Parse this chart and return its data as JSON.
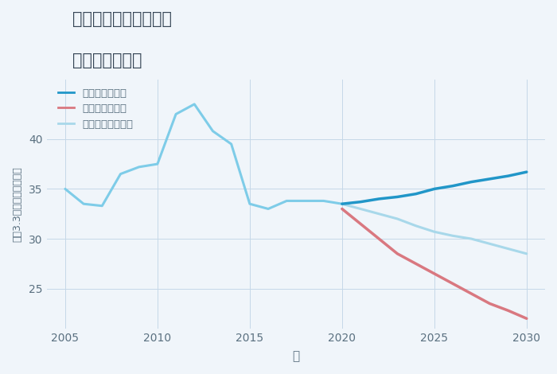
{
  "title_line1": "千葉県成田市稲荷山の",
  "title_line2": "土地の価格推移",
  "xlabel": "年",
  "ylabel": "坪（3.3㎡）単価（万円）",
  "background_color": "#f0f5fa",
  "grid_color": "#c5d8e8",
  "historical": {
    "years": [
      2005,
      2006,
      2007,
      2008,
      2009,
      2010,
      2011,
      2012,
      2013,
      2014,
      2015,
      2016,
      2017,
      2018,
      2019,
      2020
    ],
    "values": [
      35.0,
      33.5,
      33.3,
      36.5,
      37.2,
      37.5,
      42.5,
      43.5,
      40.8,
      39.5,
      33.5,
      33.0,
      33.8,
      33.8,
      33.8,
      33.5
    ]
  },
  "good": {
    "years": [
      2020,
      2021,
      2022,
      2023,
      2024,
      2025,
      2026,
      2027,
      2028,
      2029,
      2030
    ],
    "values": [
      33.5,
      33.7,
      34.0,
      34.2,
      34.5,
      35.0,
      35.3,
      35.7,
      36.0,
      36.3,
      36.7
    ]
  },
  "bad": {
    "years": [
      2020,
      2021,
      2022,
      2023,
      2024,
      2025,
      2026,
      2027,
      2028,
      2029,
      2030
    ],
    "values": [
      33.0,
      31.5,
      30.0,
      28.5,
      27.5,
      26.5,
      25.5,
      24.5,
      23.5,
      22.8,
      22.0
    ]
  },
  "normal": {
    "years": [
      2020,
      2021,
      2022,
      2023,
      2024,
      2025,
      2026,
      2027,
      2028,
      2029,
      2030
    ],
    "values": [
      33.5,
      33.0,
      32.5,
      32.0,
      31.3,
      30.7,
      30.3,
      30.0,
      29.5,
      29.0,
      28.5
    ]
  },
  "historical_color": "#7ecce8",
  "good_color": "#2196c8",
  "bad_color": "#d97880",
  "normal_color": "#a8d8ea",
  "title_color": "#354555",
  "tick_color": "#5a7080",
  "label_color": "#5a7080",
  "ylim": [
    21,
    46
  ],
  "xlim": [
    2004,
    2031
  ],
  "yticks": [
    25,
    30,
    35,
    40
  ],
  "xticks": [
    2005,
    2010,
    2015,
    2020,
    2025,
    2030
  ],
  "legend_labels": [
    "グッドシナリオ",
    "バッドシナリオ",
    "ノーマルシナリオ"
  ],
  "legend_colors": [
    "#2196c8",
    "#d97880",
    "#a8d8ea"
  ]
}
